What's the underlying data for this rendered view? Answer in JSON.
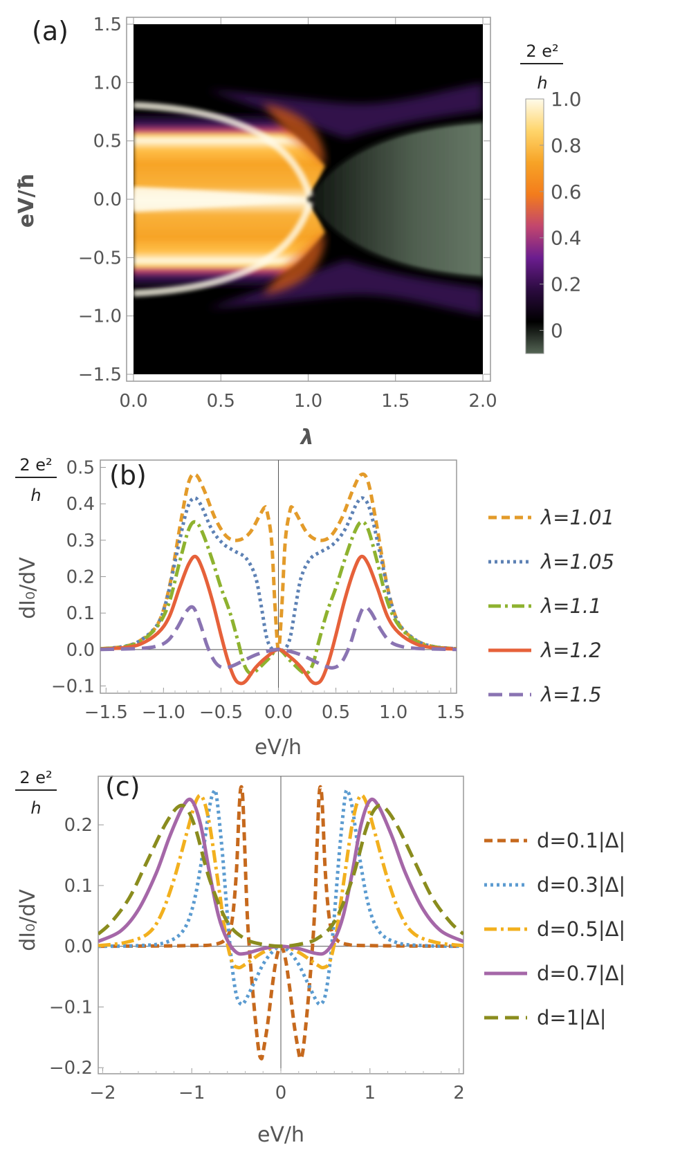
{
  "chart_data": [
    {
      "panel": "(a)",
      "type": "heatmap",
      "xlabel": "λ",
      "ylabel": "eV/ħ",
      "xlim": [
        0.0,
        2.0
      ],
      "ylim": [
        -1.5,
        1.5
      ],
      "xticks": [
        "0.0",
        "0.5",
        "1.0",
        "1.5",
        "2.0"
      ],
      "yticks": [
        "1.5",
        "1.0",
        "0.5",
        "0.0",
        "−0.5",
        "−1.0",
        "−1.5"
      ],
      "colorbar": {
        "unit_num": "2 e²",
        "unit_den": "h",
        "range": [
          -0.1,
          1.0
        ],
        "ticks": [
          "1.0",
          "0.8",
          "0.6",
          "0.4",
          "0.2",
          "0"
        ],
        "colors": [
          "#556655",
          "#000000",
          "#2b0b3f",
          "#6b1d8f",
          "#c2466e",
          "#f37c1c",
          "#f7a326",
          "#ffd56b",
          "#fffbea"
        ]
      }
    },
    {
      "panel": "(b)",
      "type": "line",
      "xlabel": "eV/h",
      "ylabel": "dI₀/dV",
      "unit_num": "2 e²",
      "unit_den": "h",
      "xlim": [
        -1.55,
        1.55
      ],
      "ylim": [
        -0.12,
        0.52
      ],
      "xticks": [
        "−1.5",
        "−1.0",
        "−0.5",
        "0.0",
        "0.5",
        "1.0",
        "1.5"
      ],
      "yticks": [
        "0.5",
        "0.4",
        "0.3",
        "0.2",
        "0.1",
        "0.0",
        "−0.1"
      ],
      "series": [
        {
          "name": "λ=1.01",
          "color": "#e39b2a",
          "dash": "12,7",
          "points": [
            [
              0.0,
              0.0
            ],
            [
              0.03,
              0.12
            ],
            [
              0.06,
              0.3
            ],
            [
              0.1,
              0.38
            ],
            [
              0.12,
              0.39
            ],
            [
              0.16,
              0.37
            ],
            [
              0.25,
              0.32
            ],
            [
              0.35,
              0.3
            ],
            [
              0.45,
              0.31
            ],
            [
              0.55,
              0.36
            ],
            [
              0.65,
              0.44
            ],
            [
              0.72,
              0.48
            ],
            [
              0.78,
              0.46
            ],
            [
              0.85,
              0.35
            ],
            [
              0.95,
              0.17
            ],
            [
              1.05,
              0.07
            ],
            [
              1.2,
              0.025
            ],
            [
              1.35,
              0.008
            ],
            [
              1.55,
              0.002
            ]
          ]
        },
        {
          "name": "λ=1.05",
          "color": "#5d81b4",
          "dash": "4,5",
          "points": [
            [
              0.0,
              0.0
            ],
            [
              0.05,
              0.0
            ],
            [
              0.1,
              0.03
            ],
            [
              0.15,
              0.12
            ],
            [
              0.2,
              0.2
            ],
            [
              0.28,
              0.25
            ],
            [
              0.38,
              0.27
            ],
            [
              0.48,
              0.29
            ],
            [
              0.58,
              0.33
            ],
            [
              0.68,
              0.4
            ],
            [
              0.74,
              0.415
            ],
            [
              0.8,
              0.38
            ],
            [
              0.88,
              0.27
            ],
            [
              0.97,
              0.14
            ],
            [
              1.05,
              0.07
            ],
            [
              1.2,
              0.025
            ],
            [
              1.35,
              0.008
            ],
            [
              1.55,
              0.002
            ]
          ]
        },
        {
          "name": "λ=1.1",
          "color": "#8eb22f",
          "dash": "18,6,4,6",
          "points": [
            [
              0.0,
              0.0
            ],
            [
              0.1,
              -0.03
            ],
            [
              0.2,
              -0.06
            ],
            [
              0.25,
              -0.065
            ],
            [
              0.3,
              -0.04
            ],
            [
              0.35,
              0.02
            ],
            [
              0.42,
              0.1
            ],
            [
              0.5,
              0.17
            ],
            [
              0.58,
              0.25
            ],
            [
              0.66,
              0.32
            ],
            [
              0.72,
              0.35
            ],
            [
              0.78,
              0.33
            ],
            [
              0.86,
              0.24
            ],
            [
              0.95,
              0.13
            ],
            [
              1.05,
              0.065
            ],
            [
              1.2,
              0.022
            ],
            [
              1.35,
              0.007
            ],
            [
              1.55,
              0.002
            ]
          ]
        },
        {
          "name": "λ=1.2",
          "color": "#e6613a",
          "dash": "",
          "points": [
            [
              0.0,
              0.0
            ],
            [
              0.1,
              -0.02
            ],
            [
              0.2,
              -0.05
            ],
            [
              0.28,
              -0.085
            ],
            [
              0.33,
              -0.093
            ],
            [
              0.38,
              -0.08
            ],
            [
              0.44,
              -0.03
            ],
            [
              0.5,
              0.04
            ],
            [
              0.58,
              0.14
            ],
            [
              0.66,
              0.22
            ],
            [
              0.72,
              0.255
            ],
            [
              0.78,
              0.235
            ],
            [
              0.86,
              0.17
            ],
            [
              0.95,
              0.09
            ],
            [
              1.05,
              0.045
            ],
            [
              1.2,
              0.015
            ],
            [
              1.35,
              0.005
            ],
            [
              1.55,
              0.001
            ]
          ]
        },
        {
          "name": "λ=1.5",
          "color": "#8a74b2",
          "dash": "20,10",
          "points": [
            [
              0.0,
              0.0
            ],
            [
              0.1,
              -0.005
            ],
            [
              0.2,
              -0.015
            ],
            [
              0.3,
              -0.03
            ],
            [
              0.4,
              -0.045
            ],
            [
              0.48,
              -0.05
            ],
            [
              0.55,
              -0.035
            ],
            [
              0.62,
              0.01
            ],
            [
              0.68,
              0.07
            ],
            [
              0.74,
              0.115
            ],
            [
              0.8,
              0.105
            ],
            [
              0.88,
              0.06
            ],
            [
              0.96,
              0.025
            ],
            [
              1.05,
              0.01
            ],
            [
              1.2,
              0.003
            ],
            [
              1.55,
              0.0
            ]
          ]
        }
      ]
    },
    {
      "panel": "(c)",
      "type": "line",
      "xlabel": "eV/h",
      "ylabel": "dI₀/dV",
      "unit_num": "2 e²",
      "unit_den": "h",
      "xlim": [
        -2.05,
        2.05
      ],
      "ylim": [
        -0.21,
        0.28
      ],
      "xticks": [
        "−2",
        "−1",
        "0",
        "1",
        "2"
      ],
      "yticks": [
        "0.2",
        "0.1",
        "0.0",
        "−0.1",
        "−0.2"
      ],
      "series": [
        {
          "name": "d=0.1|Δ|",
          "color": "#c6691d",
          "dash": "12,7",
          "points": [
            [
              0.0,
              0.0
            ],
            [
              0.05,
              -0.02
            ],
            [
              0.1,
              -0.07
            ],
            [
              0.15,
              -0.13
            ],
            [
              0.2,
              -0.175
            ],
            [
              0.22,
              -0.185
            ],
            [
              0.25,
              -0.17
            ],
            [
              0.3,
              -0.1
            ],
            [
              0.35,
              -0.01
            ],
            [
              0.38,
              0.06
            ],
            [
              0.41,
              0.18
            ],
            [
              0.43,
              0.25
            ],
            [
              0.45,
              0.26
            ],
            [
              0.47,
              0.22
            ],
            [
              0.5,
              0.12
            ],
            [
              0.55,
              0.04
            ],
            [
              0.62,
              0.012
            ],
            [
              0.75,
              0.003
            ],
            [
              1.0,
              0.001
            ],
            [
              2.05,
              0.0
            ]
          ]
        },
        {
          "name": "d=0.3|Δ|",
          "color": "#5b9bd0",
          "dash": "4,5",
          "points": [
            [
              0.0,
              0.0
            ],
            [
              0.1,
              -0.01
            ],
            [
              0.2,
              -0.03
            ],
            [
              0.3,
              -0.06
            ],
            [
              0.4,
              -0.09
            ],
            [
              0.45,
              -0.095
            ],
            [
              0.5,
              -0.08
            ],
            [
              0.55,
              -0.03
            ],
            [
              0.6,
              0.05
            ],
            [
              0.66,
              0.16
            ],
            [
              0.72,
              0.245
            ],
            [
              0.75,
              0.255
            ],
            [
              0.8,
              0.23
            ],
            [
              0.88,
              0.15
            ],
            [
              0.98,
              0.07
            ],
            [
              1.1,
              0.025
            ],
            [
              1.3,
              0.006
            ],
            [
              1.6,
              0.001
            ],
            [
              2.05,
              0.0
            ]
          ]
        },
        {
          "name": "d=0.5|Δ|",
          "color": "#f2b01e",
          "dash": "18,6,4,6",
          "points": [
            [
              0.0,
              0.0
            ],
            [
              0.2,
              -0.01
            ],
            [
              0.4,
              -0.03
            ],
            [
              0.48,
              -0.035
            ],
            [
              0.55,
              -0.025
            ],
            [
              0.62,
              0.02
            ],
            [
              0.7,
              0.1
            ],
            [
              0.8,
              0.2
            ],
            [
              0.88,
              0.245
            ],
            [
              0.95,
              0.24
            ],
            [
              1.05,
              0.19
            ],
            [
              1.2,
              0.11
            ],
            [
              1.35,
              0.05
            ],
            [
              1.5,
              0.02
            ],
            [
              1.75,
              0.006
            ],
            [
              2.05,
              0.001
            ]
          ]
        },
        {
          "name": "d=0.7|Δ|",
          "color": "#a567a8",
          "dash": "",
          "points": [
            [
              0.0,
              0.0
            ],
            [
              0.2,
              -0.004
            ],
            [
              0.4,
              -0.012
            ],
            [
              0.5,
              -0.01
            ],
            [
              0.6,
              0.01
            ],
            [
              0.7,
              0.05
            ],
            [
              0.8,
              0.12
            ],
            [
              0.9,
              0.2
            ],
            [
              1.0,
              0.24
            ],
            [
              1.1,
              0.23
            ],
            [
              1.25,
              0.18
            ],
            [
              1.4,
              0.12
            ],
            [
              1.6,
              0.06
            ],
            [
              1.8,
              0.025
            ],
            [
              2.05,
              0.008
            ]
          ]
        },
        {
          "name": "d=1|Δ|",
          "color": "#8a8c1e",
          "dash": "20,10",
          "points": [
            [
              0.0,
              0.0
            ],
            [
              0.2,
              0.003
            ],
            [
              0.4,
              0.012
            ],
            [
              0.6,
              0.04
            ],
            [
              0.8,
              0.11
            ],
            [
              0.95,
              0.19
            ],
            [
              1.05,
              0.225
            ],
            [
              1.15,
              0.23
            ],
            [
              1.3,
              0.2
            ],
            [
              1.5,
              0.14
            ],
            [
              1.7,
              0.08
            ],
            [
              1.9,
              0.04
            ],
            [
              2.05,
              0.02
            ]
          ]
        }
      ]
    }
  ]
}
